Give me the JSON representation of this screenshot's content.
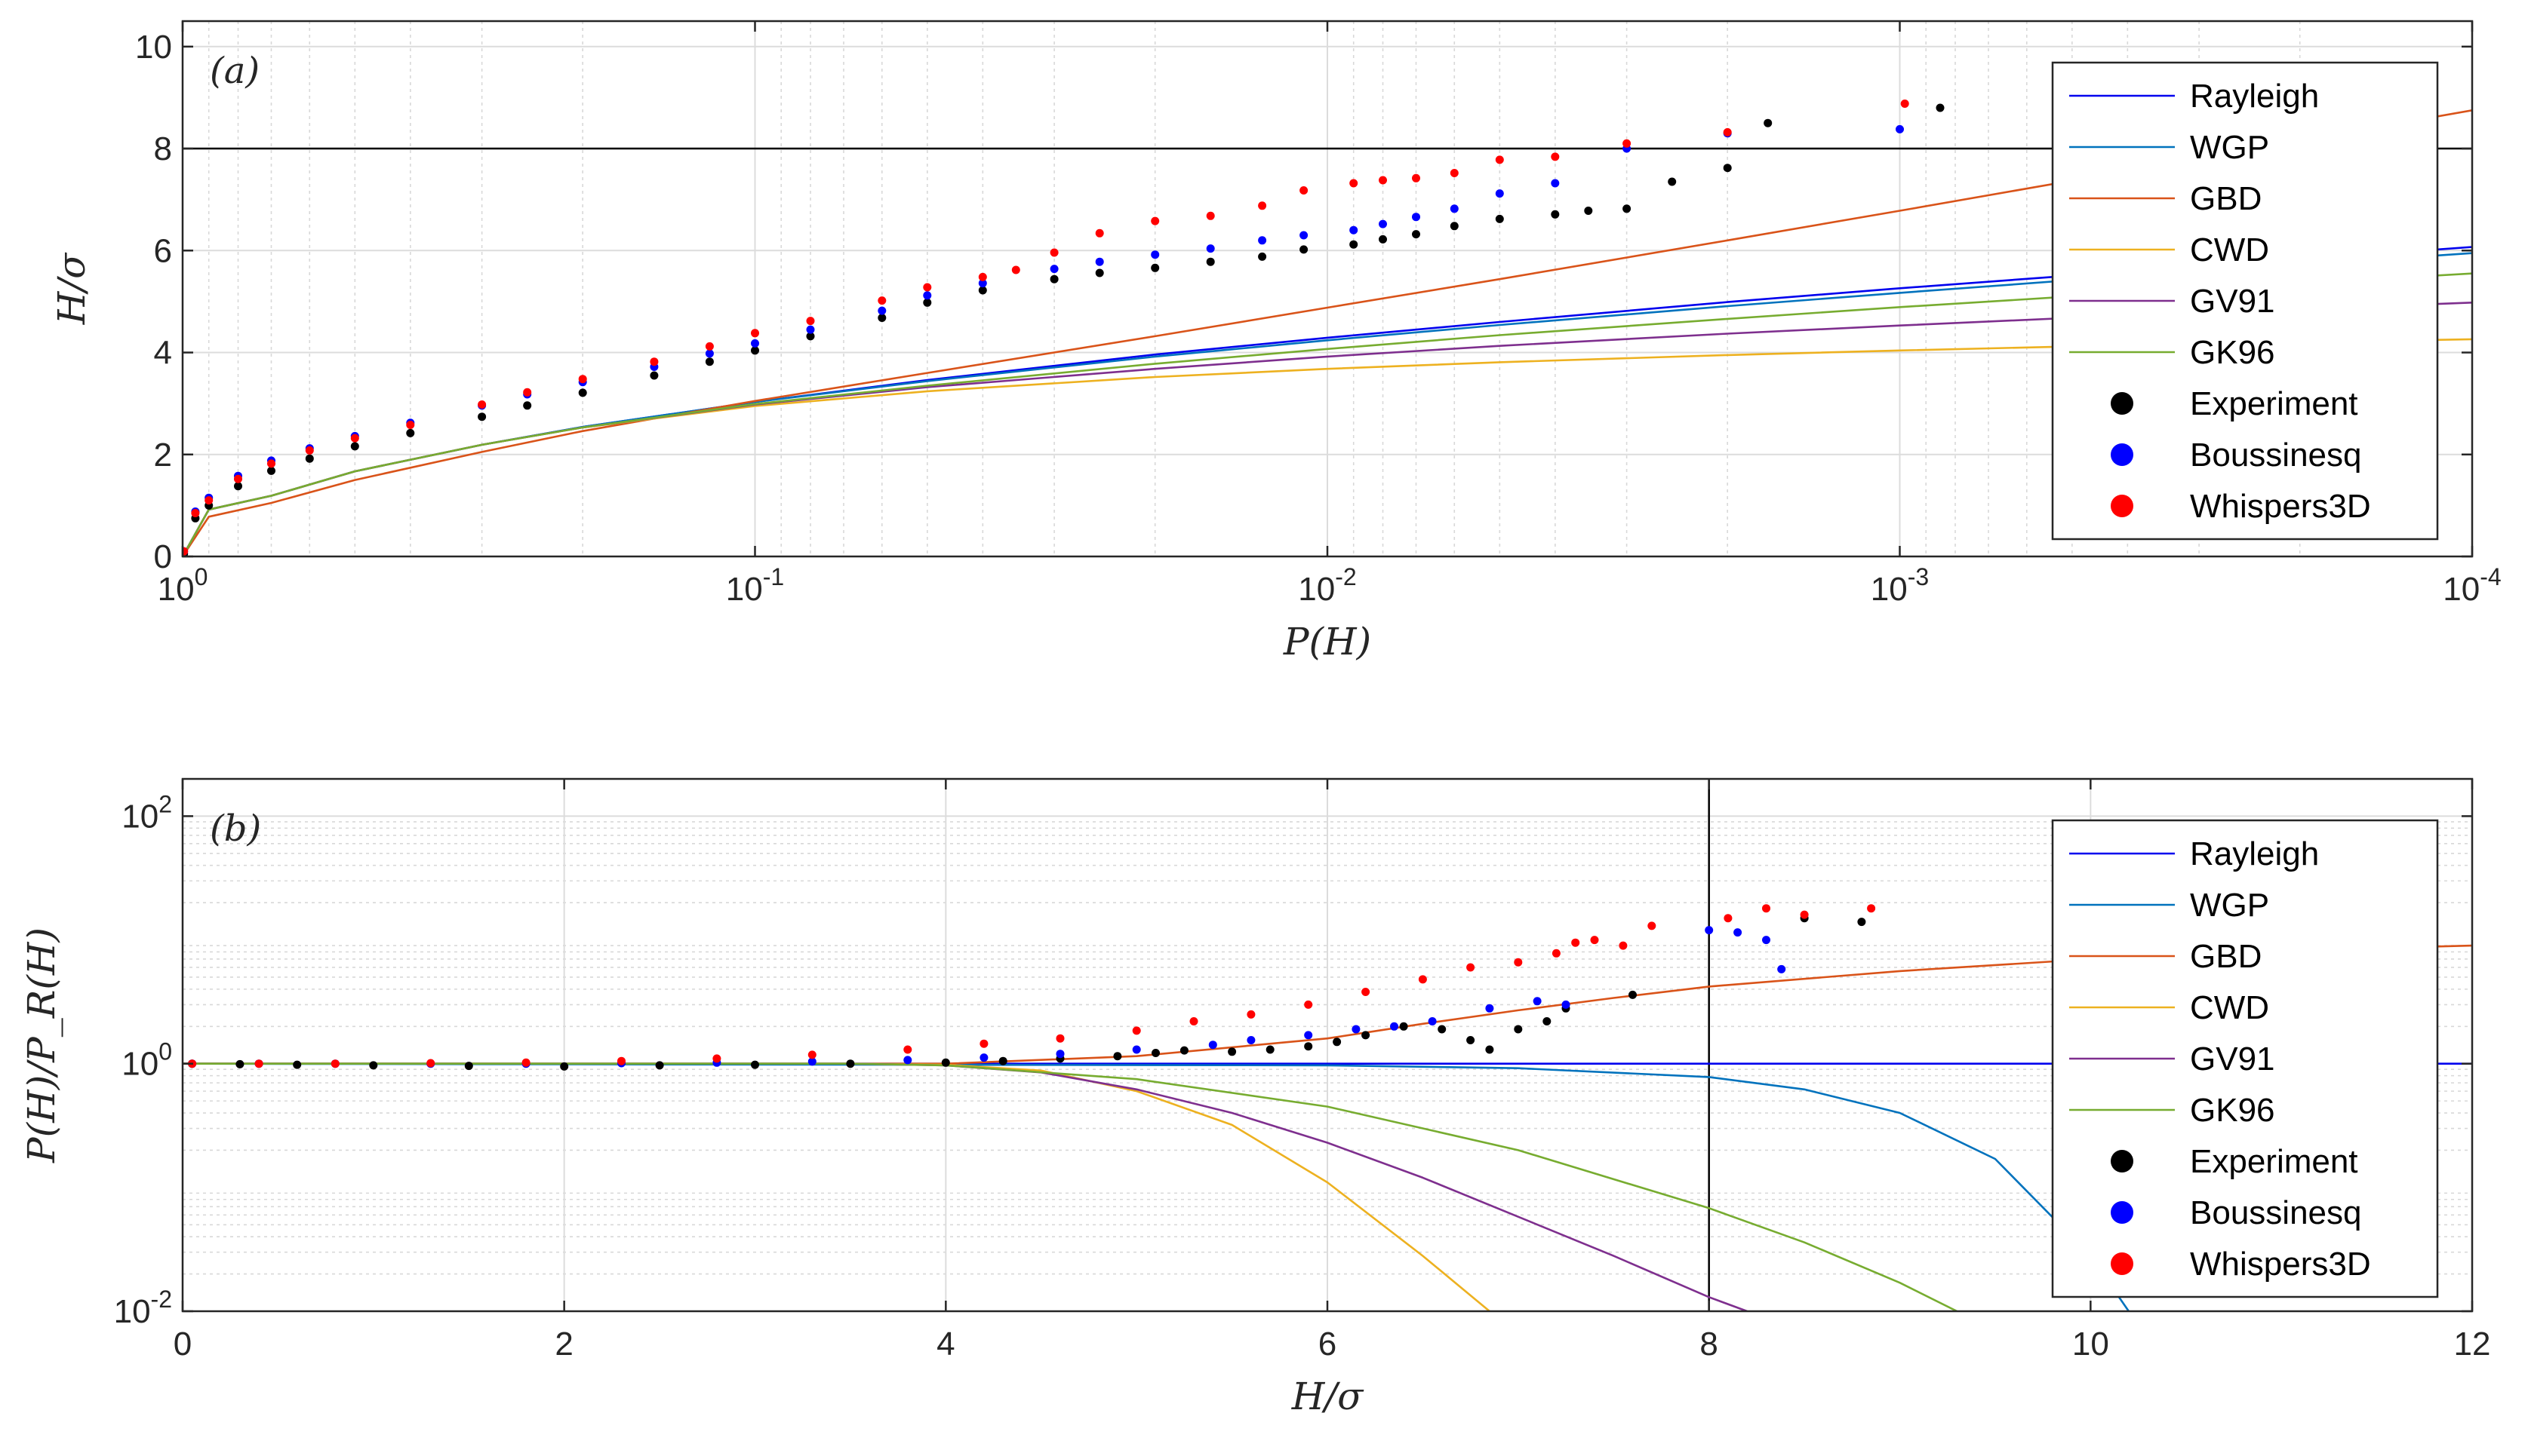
{
  "chart_data": [
    {
      "type": "line",
      "panel_tag": "(a)",
      "xlabel": "P(H)",
      "ylabel": "H/σ",
      "xscale": "log",
      "x_reversed": true,
      "xlim": [
        1,
        0.0001
      ],
      "ylim": [
        0,
        10.5
      ],
      "grid": true,
      "x_ticks": [
        {
          "value": 1,
          "base": "10",
          "exp": "0"
        },
        {
          "value": 0.1,
          "base": "10",
          "exp": "-1"
        },
        {
          "value": 0.01,
          "base": "10",
          "exp": "-2"
        },
        {
          "value": 0.001,
          "base": "10",
          "exp": "-3"
        },
        {
          "value": 0.0001,
          "base": "10",
          "exp": "-4"
        }
      ],
      "y_ticks": [
        {
          "value": 0,
          "label": "0"
        },
        {
          "value": 2,
          "label": "2"
        },
        {
          "value": 4,
          "label": "4"
        },
        {
          "value": 6,
          "label": "6"
        },
        {
          "value": 8,
          "label": "8"
        },
        {
          "value": 10,
          "label": "10"
        }
      ],
      "reference_line": {
        "axis": "y",
        "value": 8
      },
      "legend_position": "top-right",
      "series": [
        {
          "name": "Rayleigh",
          "kind": "line",
          "color": "#0000ee",
          "x": [
            1,
            0.9,
            0.7,
            0.5,
            0.3,
            0.2,
            0.1,
            0.05,
            0.02,
            0.01,
            0.005,
            0.002,
            0.001,
            0.0005,
            0.0001
          ],
          "y": [
            0,
            0.92,
            1.19,
            1.67,
            2.19,
            2.54,
            3.03,
            3.46,
            3.96,
            4.29,
            4.6,
            4.99,
            5.26,
            5.51,
            6.07
          ]
        },
        {
          "name": "WGP",
          "kind": "line",
          "color": "#0072bd",
          "x": [
            1,
            0.9,
            0.7,
            0.5,
            0.3,
            0.2,
            0.1,
            0.05,
            0.02,
            0.01,
            0.005,
            0.002,
            0.001,
            0.0005,
            0.0001
          ],
          "y": [
            0,
            0.92,
            1.19,
            1.67,
            2.19,
            2.54,
            3.03,
            3.44,
            3.92,
            4.24,
            4.54,
            4.91,
            5.17,
            5.42,
            5.95
          ]
        },
        {
          "name": "GBD",
          "kind": "line",
          "color": "#d95319",
          "x": [
            1,
            0.9,
            0.7,
            0.5,
            0.3,
            0.2,
            0.1,
            0.05,
            0.02,
            0.01,
            0.005,
            0.002,
            0.001,
            0.0005,
            0.0001
          ],
          "y": [
            0,
            0.78,
            1.05,
            1.5,
            2.05,
            2.46,
            3.05,
            3.6,
            4.32,
            4.88,
            5.44,
            6.2,
            6.78,
            7.37,
            8.75
          ]
        },
        {
          "name": "CWD",
          "kind": "line",
          "color": "#edb120",
          "x": [
            1,
            0.9,
            0.7,
            0.5,
            0.3,
            0.2,
            0.1,
            0.05,
            0.02,
            0.01,
            0.005,
            0.002,
            0.001,
            0.0005,
            0.0001
          ],
          "y": [
            0,
            0.92,
            1.19,
            1.67,
            2.19,
            2.53,
            2.95,
            3.24,
            3.52,
            3.68,
            3.81,
            3.95,
            4.04,
            4.12,
            4.26
          ]
        },
        {
          "name": "GV91",
          "kind": "line",
          "color": "#7e2f8e",
          "x": [
            1,
            0.9,
            0.7,
            0.5,
            0.3,
            0.2,
            0.1,
            0.05,
            0.02,
            0.01,
            0.005,
            0.002,
            0.001,
            0.0005,
            0.0001
          ],
          "y": [
            0,
            0.92,
            1.19,
            1.67,
            2.19,
            2.53,
            2.98,
            3.32,
            3.68,
            3.92,
            4.13,
            4.37,
            4.53,
            4.68,
            4.98
          ]
        },
        {
          "name": "GK96",
          "kind": "line",
          "color": "#77ac30",
          "x": [
            1,
            0.9,
            0.7,
            0.5,
            0.3,
            0.2,
            0.1,
            0.05,
            0.02,
            0.01,
            0.005,
            0.002,
            0.001,
            0.0005,
            0.0001
          ],
          "y": [
            0,
            0.92,
            1.19,
            1.67,
            2.19,
            2.53,
            2.99,
            3.35,
            3.78,
            4.07,
            4.34,
            4.66,
            4.89,
            5.1,
            5.55
          ]
        },
        {
          "name": "Experiment",
          "kind": "scatter",
          "color": "#000000",
          "x": [
            0.995,
            0.95,
            0.9,
            0.8,
            0.7,
            0.6,
            0.5,
            0.4,
            0.3,
            0.25,
            0.2,
            0.15,
            0.12,
            0.1,
            0.08,
            0.06,
            0.05,
            0.04,
            0.03,
            0.025,
            0.02,
            0.016,
            0.013,
            0.011,
            0.009,
            0.008,
            0.007,
            0.006,
            0.005,
            0.004,
            0.0035,
            0.003,
            0.0025,
            0.002,
            0.0017,
            0.00085
          ],
          "y": [
            0.05,
            0.75,
            1.0,
            1.38,
            1.68,
            1.92,
            2.16,
            2.42,
            2.74,
            2.96,
            3.21,
            3.55,
            3.82,
            4.04,
            4.32,
            4.68,
            4.98,
            5.22,
            5.44,
            5.56,
            5.66,
            5.78,
            5.88,
            6.02,
            6.12,
            6.22,
            6.32,
            6.48,
            6.62,
            6.71,
            6.78,
            6.82,
            7.35,
            7.62,
            8.5,
            8.8
          ]
        },
        {
          "name": "Boussinesq",
          "kind": "scatter",
          "color": "#0000ff",
          "x": [
            0.995,
            0.95,
            0.9,
            0.8,
            0.7,
            0.6,
            0.5,
            0.4,
            0.3,
            0.25,
            0.2,
            0.15,
            0.12,
            0.1,
            0.08,
            0.06,
            0.05,
            0.04,
            0.03,
            0.025,
            0.02,
            0.016,
            0.013,
            0.011,
            0.009,
            0.008,
            0.007,
            0.006,
            0.005,
            0.004,
            0.003,
            0.002,
            0.001
          ],
          "y": [
            0.1,
            0.88,
            1.15,
            1.58,
            1.88,
            2.12,
            2.36,
            2.62,
            2.96,
            3.18,
            3.42,
            3.72,
            3.98,
            4.18,
            4.45,
            4.82,
            5.12,
            5.36,
            5.64,
            5.78,
            5.92,
            6.04,
            6.2,
            6.3,
            6.4,
            6.52,
            6.66,
            6.82,
            7.12,
            7.32,
            8.0,
            8.3,
            8.38
          ]
        },
        {
          "name": "Whispers3D",
          "kind": "scatter",
          "color": "#ff0000",
          "x": [
            0.995,
            0.95,
            0.9,
            0.8,
            0.7,
            0.6,
            0.5,
            0.4,
            0.3,
            0.25,
            0.2,
            0.15,
            0.12,
            0.1,
            0.08,
            0.06,
            0.05,
            0.04,
            0.035,
            0.03,
            0.025,
            0.02,
            0.016,
            0.013,
            0.011,
            0.009,
            0.008,
            0.007,
            0.006,
            0.005,
            0.004,
            0.003,
            0.002,
            0.00098
          ],
          "y": [
            0.1,
            0.85,
            1.1,
            1.52,
            1.82,
            2.08,
            2.32,
            2.58,
            2.98,
            3.22,
            3.48,
            3.82,
            4.12,
            4.38,
            4.62,
            5.02,
            5.28,
            5.48,
            5.62,
            5.96,
            6.34,
            6.58,
            6.68,
            6.88,
            7.18,
            7.32,
            7.38,
            7.42,
            7.52,
            7.78,
            7.84,
            8.1,
            8.32,
            8.88
          ]
        }
      ]
    },
    {
      "type": "line",
      "panel_tag": "(b)",
      "xlabel": "H/σ",
      "ylabel": "P(H)/P_R(H)",
      "yscale": "log",
      "xlim": [
        0,
        12
      ],
      "ylim": [
        0.01,
        200
      ],
      "grid": true,
      "x_ticks": [
        {
          "value": 0,
          "label": "0"
        },
        {
          "value": 2,
          "label": "2"
        },
        {
          "value": 4,
          "label": "4"
        },
        {
          "value": 6,
          "label": "6"
        },
        {
          "value": 8,
          "label": "8"
        },
        {
          "value": 10,
          "label": "10"
        },
        {
          "value": 12,
          "label": "12"
        }
      ],
      "y_ticks": [
        {
          "value": 0.01,
          "base": "10",
          "exp": "-2"
        },
        {
          "value": 1,
          "base": "10",
          "exp": "0"
        },
        {
          "value": 100,
          "base": "10",
          "exp": "2"
        }
      ],
      "reference_line": {
        "axis": "x",
        "value": 8
      },
      "legend_position": "right",
      "series": [
        {
          "name": "Rayleigh",
          "kind": "line",
          "color": "#0000ee",
          "x": [
            0,
            12
          ],
          "y": [
            1,
            1
          ]
        },
        {
          "name": "WGP",
          "kind": "line",
          "color": "#0072bd",
          "x": [
            0,
            6,
            7,
            8,
            8.5,
            9,
            9.5,
            10,
            10.2
          ],
          "y": [
            1,
            0.97,
            0.92,
            0.78,
            0.62,
            0.4,
            0.17,
            0.028,
            0.01
          ]
        },
        {
          "name": "GBD",
          "kind": "line",
          "color": "#d95319",
          "x": [
            0,
            3,
            4,
            5,
            6,
            6.5,
            7,
            7.5,
            8,
            9,
            10,
            11,
            12
          ],
          "y": [
            1,
            1,
            1.0,
            1.15,
            1.6,
            2.1,
            2.7,
            3.4,
            4.2,
            5.6,
            7.0,
            8.2,
            9.0
          ]
        },
        {
          "name": "CWD",
          "kind": "line",
          "color": "#edb120",
          "x": [
            0,
            3.5,
            4,
            4.5,
            5,
            5.5,
            6,
            6.5,
            6.85
          ],
          "y": [
            1,
            1,
            0.98,
            0.88,
            0.6,
            0.32,
            0.11,
            0.028,
            0.01
          ]
        },
        {
          "name": "GV91",
          "kind": "line",
          "color": "#7e2f8e",
          "x": [
            0,
            3.5,
            4,
            4.5,
            5,
            5.5,
            6,
            6.5,
            7,
            7.5,
            8,
            8.2
          ],
          "y": [
            1,
            1,
            0.97,
            0.85,
            0.62,
            0.4,
            0.23,
            0.12,
            0.058,
            0.028,
            0.013,
            0.01
          ]
        },
        {
          "name": "GK96",
          "kind": "line",
          "color": "#77ac30",
          "x": [
            0,
            3.5,
            4,
            5,
            6,
            7,
            8,
            8.5,
            9,
            9.3
          ],
          "y": [
            1,
            1,
            0.97,
            0.75,
            0.45,
            0.2,
            0.068,
            0.036,
            0.017,
            0.01
          ]
        },
        {
          "name": "Experiment",
          "kind": "scatter",
          "color": "#000000",
          "x": [
            0.05,
            0.3,
            0.6,
            1.0,
            1.5,
            2.0,
            2.5,
            3.0,
            3.5,
            4.0,
            4.3,
            4.6,
            4.9,
            5.1,
            5.25,
            5.5,
            5.7,
            5.9,
            6.05,
            6.2,
            6.4,
            6.6,
            6.75,
            6.85,
            7.0,
            7.15,
            7.25,
            7.6,
            8.5,
            8.8
          ],
          "y": [
            1,
            0.99,
            0.98,
            0.97,
            0.96,
            0.95,
            0.97,
            0.98,
            1.0,
            1.02,
            1.05,
            1.1,
            1.15,
            1.22,
            1.28,
            1.25,
            1.3,
            1.38,
            1.5,
            1.7,
            2.0,
            1.9,
            1.55,
            1.3,
            1.9,
            2.2,
            2.8,
            3.6,
            15,
            14
          ]
        },
        {
          "name": "Boussinesq",
          "kind": "scatter",
          "color": "#0000ff",
          "x": [
            0.05,
            0.4,
            0.8,
            1.3,
            1.8,
            2.3,
            2.8,
            3.3,
            3.8,
            4.2,
            4.6,
            5.0,
            5.4,
            5.6,
            5.9,
            6.15,
            6.35,
            6.55,
            6.85,
            7.1,
            7.25,
            8.0,
            8.15,
            8.3,
            8.38
          ],
          "y": [
            1,
            1,
            1,
            1,
            1,
            1.01,
            1.02,
            1.04,
            1.07,
            1.12,
            1.2,
            1.3,
            1.42,
            1.55,
            1.7,
            1.9,
            2.0,
            2.2,
            2.8,
            3.2,
            3.0,
            12,
            11.5,
            10,
            5.8
          ]
        },
        {
          "name": "Whispers3D",
          "kind": "scatter",
          "color": "#ff0000",
          "x": [
            0.05,
            0.4,
            0.8,
            1.3,
            1.8,
            2.3,
            2.8,
            3.3,
            3.8,
            4.2,
            4.6,
            5.0,
            5.3,
            5.6,
            5.9,
            6.2,
            6.5,
            6.75,
            7.0,
            7.2,
            7.3,
            7.4,
            7.55,
            7.7,
            8.1,
            8.3,
            8.5,
            8.85
          ],
          "y": [
            1,
            1.0,
            1.0,
            1.01,
            1.02,
            1.05,
            1.1,
            1.18,
            1.3,
            1.45,
            1.6,
            1.85,
            2.2,
            2.5,
            3.0,
            3.8,
            4.8,
            6.0,
            6.6,
            7.8,
            9.5,
            10,
            9.0,
            13,
            15,
            18,
            16,
            18
          ]
        }
      ]
    }
  ]
}
